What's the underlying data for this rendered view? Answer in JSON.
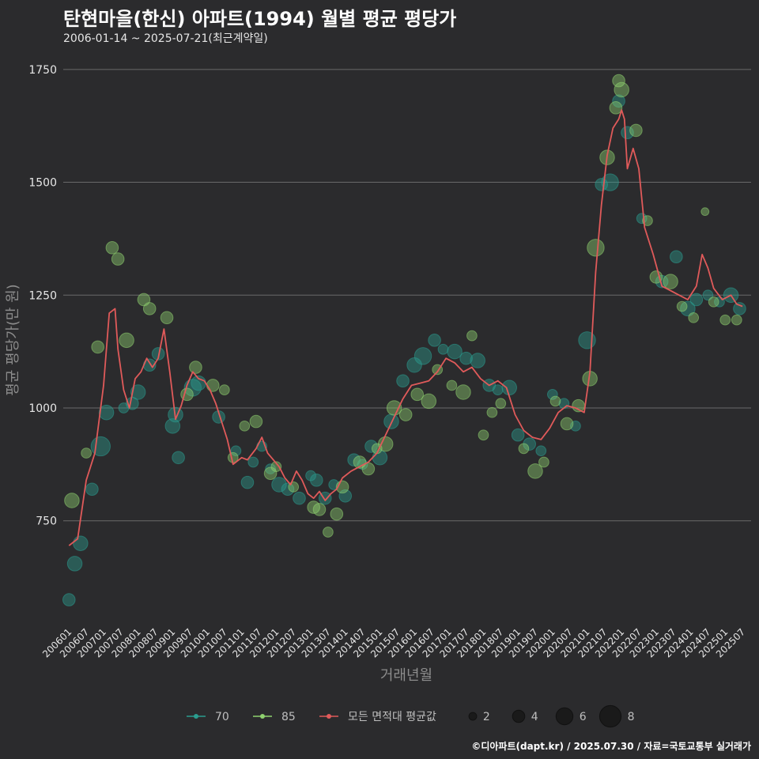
{
  "title": "탄현마을(한신) 아파트(1994) 월별 평균 평당가",
  "subtitle": "2006-01-14 ~ 2025-07-21(최근계약일)",
  "caption": "©디아파트(dapt.kr) / 2025.07.30 / 자료=국토교통부 실거래가",
  "colors": {
    "background": "#2b2b2d",
    "grid": "#6a6a6a",
    "s70": "#2a9d8f",
    "s85": "#8fd16f",
    "avg": "#e05a5a"
  },
  "chart_data": {
    "type": "scatter",
    "xlabel": "거래년월",
    "ylabel": "평균 평당가(만 원)",
    "ylim": [
      520,
      1790
    ],
    "xlim": [
      "2005-11",
      "2025-10"
    ],
    "y_ticks": [
      750,
      1000,
      1250,
      1500,
      1750
    ],
    "x_ticks": [
      "200601",
      "200607",
      "200701",
      "200707",
      "200801",
      "200807",
      "200901",
      "200907",
      "201001",
      "201007",
      "201101",
      "201107",
      "201201",
      "201207",
      "201301",
      "201307",
      "201401",
      "201407",
      "201501",
      "201507",
      "201601",
      "201607",
      "201701",
      "201707",
      "201801",
      "201807",
      "201901",
      "201907",
      "202001",
      "202007",
      "202101",
      "202107",
      "202201",
      "202207",
      "202301",
      "202307",
      "202401",
      "202407",
      "202501",
      "202507"
    ],
    "legend": {
      "series": [
        {
          "name": "70",
          "color": "#2a9d8f",
          "icon": "dot-line-icon"
        },
        {
          "name": "85",
          "color": "#8fd16f",
          "icon": "dot-line-icon"
        },
        {
          "name": "모든 면적대 평균값",
          "color": "#e05a5a",
          "icon": "dot-line-icon"
        }
      ],
      "sizes": [
        2,
        4,
        6,
        8
      ]
    },
    "series": [
      {
        "name": "70",
        "color": "#2a9d8f",
        "points": [
          [
            "2006-01",
            575,
            4
          ],
          [
            "2006-03",
            655,
            5
          ],
          [
            "2006-05",
            700,
            5
          ],
          [
            "2006-09",
            820,
            4
          ],
          [
            "2006-12",
            915,
            7
          ],
          [
            "2007-02",
            990,
            5
          ],
          [
            "2007-08",
            1000,
            3
          ],
          [
            "2007-11",
            1010,
            4
          ],
          [
            "2008-01",
            1035,
            5
          ],
          [
            "2008-05",
            1095,
            4
          ],
          [
            "2008-08",
            1120,
            4
          ],
          [
            "2009-01",
            960,
            5
          ],
          [
            "2009-02",
            985,
            5
          ],
          [
            "2009-03",
            890,
            4
          ],
          [
            "2009-08",
            1045,
            6
          ],
          [
            "2009-10",
            1055,
            5
          ],
          [
            "2010-05",
            980,
            4
          ],
          [
            "2010-11",
            905,
            3
          ],
          [
            "2011-03",
            835,
            4
          ],
          [
            "2011-05",
            880,
            3
          ],
          [
            "2011-08",
            915,
            3
          ],
          [
            "2011-11",
            865,
            3
          ],
          [
            "2012-02",
            830,
            5
          ],
          [
            "2012-05",
            820,
            4
          ],
          [
            "2012-09",
            800,
            4
          ],
          [
            "2013-01",
            850,
            3
          ],
          [
            "2013-03",
            840,
            4
          ],
          [
            "2013-06",
            800,
            4
          ],
          [
            "2013-09",
            830,
            3
          ],
          [
            "2014-01",
            805,
            4
          ],
          [
            "2014-04",
            885,
            4
          ],
          [
            "2014-07",
            875,
            3
          ],
          [
            "2014-10",
            915,
            4
          ],
          [
            "2015-01",
            890,
            5
          ],
          [
            "2015-05",
            970,
            5
          ],
          [
            "2015-09",
            1060,
            4
          ],
          [
            "2016-01",
            1095,
            5
          ],
          [
            "2016-04",
            1115,
            6
          ],
          [
            "2016-08",
            1150,
            4
          ],
          [
            "2016-11",
            1130,
            3
          ],
          [
            "2017-03",
            1125,
            5
          ],
          [
            "2017-07",
            1110,
            4
          ],
          [
            "2017-11",
            1105,
            5
          ],
          [
            "2018-03",
            1050,
            4
          ],
          [
            "2018-06",
            1040,
            3
          ],
          [
            "2018-10",
            1045,
            5
          ],
          [
            "2019-01",
            940,
            4
          ],
          [
            "2019-05",
            920,
            4
          ],
          [
            "2019-09",
            905,
            3
          ],
          [
            "2020-01",
            1030,
            3
          ],
          [
            "2020-05",
            1010,
            3
          ],
          [
            "2020-09",
            960,
            3
          ],
          [
            "2021-01",
            1150,
            6
          ],
          [
            "2021-06",
            1495,
            4
          ],
          [
            "2021-09",
            1500,
            6
          ],
          [
            "2021-12",
            1680,
            4
          ],
          [
            "2022-03",
            1610,
            4
          ],
          [
            "2022-08",
            1420,
            3
          ],
          [
            "2023-03",
            1280,
            4
          ],
          [
            "2023-08",
            1335,
            4
          ],
          [
            "2023-12",
            1220,
            5
          ],
          [
            "2024-03",
            1240,
            4
          ],
          [
            "2024-07",
            1250,
            3
          ],
          [
            "2024-11",
            1235,
            3
          ],
          [
            "2025-03",
            1250,
            5
          ],
          [
            "2025-06",
            1220,
            4
          ]
        ]
      },
      {
        "name": "85",
        "color": "#8fd16f",
        "points": [
          [
            "2006-02",
            795,
            5
          ],
          [
            "2006-07",
            900,
            3
          ],
          [
            "2006-11",
            1135,
            4
          ],
          [
            "2007-04",
            1355,
            4
          ],
          [
            "2007-06",
            1330,
            4
          ],
          [
            "2007-09",
            1150,
            5
          ],
          [
            "2008-03",
            1240,
            4
          ],
          [
            "2008-05",
            1220,
            4
          ],
          [
            "2008-11",
            1200,
            4
          ],
          [
            "2009-06",
            1030,
            4
          ],
          [
            "2009-09",
            1090,
            4
          ],
          [
            "2010-03",
            1050,
            4
          ],
          [
            "2010-07",
            1040,
            3
          ],
          [
            "2010-10",
            890,
            3
          ],
          [
            "2011-02",
            960,
            3
          ],
          [
            "2011-06",
            970,
            4
          ],
          [
            "2011-11",
            855,
            4
          ],
          [
            "2012-01",
            870,
            3
          ],
          [
            "2012-07",
            825,
            3
          ],
          [
            "2013-02",
            780,
            4
          ],
          [
            "2013-04",
            775,
            4
          ],
          [
            "2013-07",
            725,
            3
          ],
          [
            "2013-10",
            765,
            4
          ],
          [
            "2013-12",
            825,
            4
          ],
          [
            "2014-06",
            880,
            4
          ],
          [
            "2014-09",
            865,
            4
          ],
          [
            "2014-12",
            910,
            3
          ],
          [
            "2015-03",
            920,
            5
          ],
          [
            "2015-06",
            1000,
            5
          ],
          [
            "2015-10",
            985,
            4
          ],
          [
            "2016-02",
            1030,
            4
          ],
          [
            "2016-06",
            1015,
            5
          ],
          [
            "2016-09",
            1085,
            3
          ],
          [
            "2017-02",
            1050,
            3
          ],
          [
            "2017-06",
            1035,
            5
          ],
          [
            "2017-09",
            1160,
            3
          ],
          [
            "2018-01",
            940,
            3
          ],
          [
            "2018-04",
            990,
            3
          ],
          [
            "2018-07",
            1010,
            3
          ],
          [
            "2019-03",
            910,
            3
          ],
          [
            "2019-07",
            860,
            5
          ],
          [
            "2019-10",
            880,
            3
          ],
          [
            "2020-02",
            1015,
            3
          ],
          [
            "2020-06",
            965,
            4
          ],
          [
            "2020-10",
            1005,
            4
          ],
          [
            "2021-02",
            1065,
            5
          ],
          [
            "2021-04",
            1355,
            6
          ],
          [
            "2021-08",
            1555,
            5
          ],
          [
            "2021-11",
            1665,
            4
          ],
          [
            "2021-12",
            1725,
            4
          ],
          [
            "2022-01",
            1705,
            5
          ],
          [
            "2022-06",
            1615,
            4
          ],
          [
            "2022-10",
            1415,
            3
          ],
          [
            "2023-01",
            1290,
            4
          ],
          [
            "2023-06",
            1280,
            5
          ],
          [
            "2023-10",
            1225,
            3
          ],
          [
            "2024-02",
            1200,
            3
          ],
          [
            "2024-06",
            1435,
            2
          ],
          [
            "2024-09",
            1235,
            3
          ],
          [
            "2025-01",
            1195,
            3
          ],
          [
            "2025-05",
            1195,
            3
          ]
        ]
      },
      {
        "name": "모든 면적대 평균값",
        "color": "#e05a5a",
        "values": [
          [
            "2006-01",
            695
          ],
          [
            "2006-04",
            710
          ],
          [
            "2006-07",
            840
          ],
          [
            "2006-10",
            900
          ],
          [
            "2007-01",
            1050
          ],
          [
            "2007-03",
            1210
          ],
          [
            "2007-05",
            1220
          ],
          [
            "2007-06",
            1130
          ],
          [
            "2007-08",
            1040
          ],
          [
            "2007-10",
            1000
          ],
          [
            "2007-12",
            1065
          ],
          [
            "2008-02",
            1080
          ],
          [
            "2008-04",
            1110
          ],
          [
            "2008-06",
            1090
          ],
          [
            "2008-08",
            1110
          ],
          [
            "2008-10",
            1175
          ],
          [
            "2008-12",
            1080
          ],
          [
            "2009-02",
            975
          ],
          [
            "2009-04",
            1005
          ],
          [
            "2009-06",
            1050
          ],
          [
            "2009-08",
            1080
          ],
          [
            "2009-10",
            1065
          ],
          [
            "2009-12",
            1060
          ],
          [
            "2010-02",
            1040
          ],
          [
            "2010-04",
            1010
          ],
          [
            "2010-06",
            970
          ],
          [
            "2010-08",
            930
          ],
          [
            "2010-10",
            875
          ],
          [
            "2011-01",
            890
          ],
          [
            "2011-03",
            885
          ],
          [
            "2011-06",
            910
          ],
          [
            "2011-08",
            935
          ],
          [
            "2011-10",
            900
          ],
          [
            "2011-12",
            885
          ],
          [
            "2012-02",
            870
          ],
          [
            "2012-04",
            845
          ],
          [
            "2012-06",
            830
          ],
          [
            "2012-08",
            860
          ],
          [
            "2012-10",
            840
          ],
          [
            "2012-12",
            810
          ],
          [
            "2013-02",
            800
          ],
          [
            "2013-04",
            815
          ],
          [
            "2013-06",
            795
          ],
          [
            "2013-08",
            810
          ],
          [
            "2013-10",
            820
          ],
          [
            "2013-12",
            845
          ],
          [
            "2014-03",
            860
          ],
          [
            "2014-06",
            870
          ],
          [
            "2014-09",
            880
          ],
          [
            "2014-12",
            900
          ],
          [
            "2015-03",
            940
          ],
          [
            "2015-06",
            980
          ],
          [
            "2015-09",
            1020
          ],
          [
            "2015-12",
            1050
          ],
          [
            "2016-03",
            1055
          ],
          [
            "2016-06",
            1060
          ],
          [
            "2016-09",
            1080
          ],
          [
            "2016-12",
            1110
          ],
          [
            "2017-03",
            1100
          ],
          [
            "2017-06",
            1080
          ],
          [
            "2017-09",
            1090
          ],
          [
            "2017-12",
            1065
          ],
          [
            "2018-03",
            1050
          ],
          [
            "2018-06",
            1060
          ],
          [
            "2018-09",
            1045
          ],
          [
            "2018-12",
            985
          ],
          [
            "2019-03",
            950
          ],
          [
            "2019-06",
            935
          ],
          [
            "2019-09",
            930
          ],
          [
            "2019-12",
            955
          ],
          [
            "2020-03",
            990
          ],
          [
            "2020-06",
            1005
          ],
          [
            "2020-09",
            1000
          ],
          [
            "2020-12",
            990
          ],
          [
            "2021-02",
            1080
          ],
          [
            "2021-04",
            1300
          ],
          [
            "2021-06",
            1450
          ],
          [
            "2021-08",
            1560
          ],
          [
            "2021-10",
            1620
          ],
          [
            "2021-12",
            1640
          ],
          [
            "2022-01",
            1660
          ],
          [
            "2022-02",
            1640
          ],
          [
            "2022-03",
            1530
          ],
          [
            "2022-05",
            1575
          ],
          [
            "2022-07",
            1530
          ],
          [
            "2022-09",
            1400
          ],
          [
            "2022-12",
            1340
          ],
          [
            "2023-03",
            1270
          ],
          [
            "2023-06",
            1260
          ],
          [
            "2023-09",
            1250
          ],
          [
            "2023-12",
            1240
          ],
          [
            "2024-03",
            1270
          ],
          [
            "2024-05",
            1340
          ],
          [
            "2024-07",
            1310
          ],
          [
            "2024-09",
            1265
          ],
          [
            "2024-12",
            1240
          ],
          [
            "2025-03",
            1250
          ],
          [
            "2025-05",
            1230
          ],
          [
            "2025-07",
            1225
          ]
        ]
      }
    ]
  }
}
